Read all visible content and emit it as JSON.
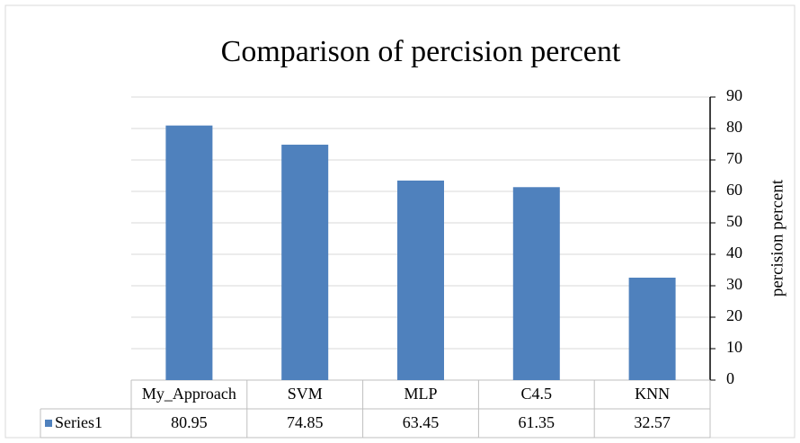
{
  "chart_data": {
    "type": "bar",
    "title": "Comparison of percision percent",
    "y_label": "percision percent",
    "categories": [
      "My_Approach",
      "SVM",
      "MLP",
      "C4.5",
      "KNN"
    ],
    "series": [
      {
        "name": "Series1",
        "color": "#4f81bd",
        "values": [
          80.95,
          74.85,
          63.45,
          61.35,
          32.57
        ]
      }
    ],
    "ylim": [
      0,
      90
    ],
    "yticks": [
      0,
      10,
      20,
      30,
      40,
      50,
      60,
      70,
      80,
      90
    ],
    "grid": true
  }
}
